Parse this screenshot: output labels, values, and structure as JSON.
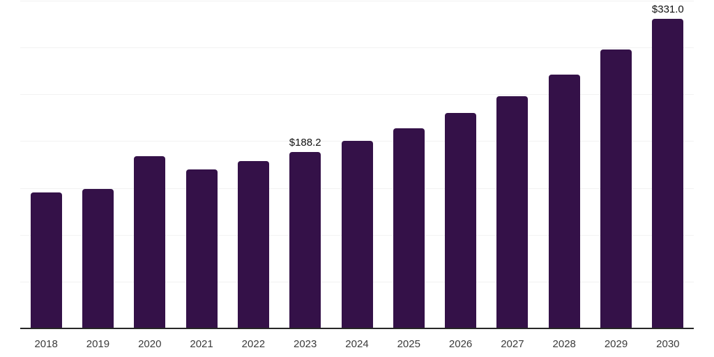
{
  "chart_data": {
    "type": "bar",
    "title": "",
    "xlabel": "",
    "ylabel": "",
    "categories": [
      "2018",
      "2019",
      "2020",
      "2021",
      "2022",
      "2023",
      "2024",
      "2025",
      "2026",
      "2027",
      "2028",
      "2029",
      "2030"
    ],
    "values": [
      145.4,
      148.9,
      183.9,
      169.8,
      178.7,
      188.2,
      200.3,
      214.0,
      230.4,
      248.3,
      271.4,
      298.2,
      331.0
    ],
    "ylim": [
      0,
      350
    ],
    "gridline_step": 50,
    "grid": "horizontal-only",
    "legend": "none",
    "value_label_prefix": "$",
    "annotations": [
      {
        "category": "2023",
        "text": "$188.2"
      },
      {
        "category": "2030",
        "text": "$331.0"
      }
    ]
  },
  "colors": {
    "bar_fill": "#341148",
    "gridline": "#f2f2f2",
    "axis_line": "#262626",
    "tick_label": "#3a3a3a",
    "value_label": "#111111",
    "background": "#ffffff"
  }
}
